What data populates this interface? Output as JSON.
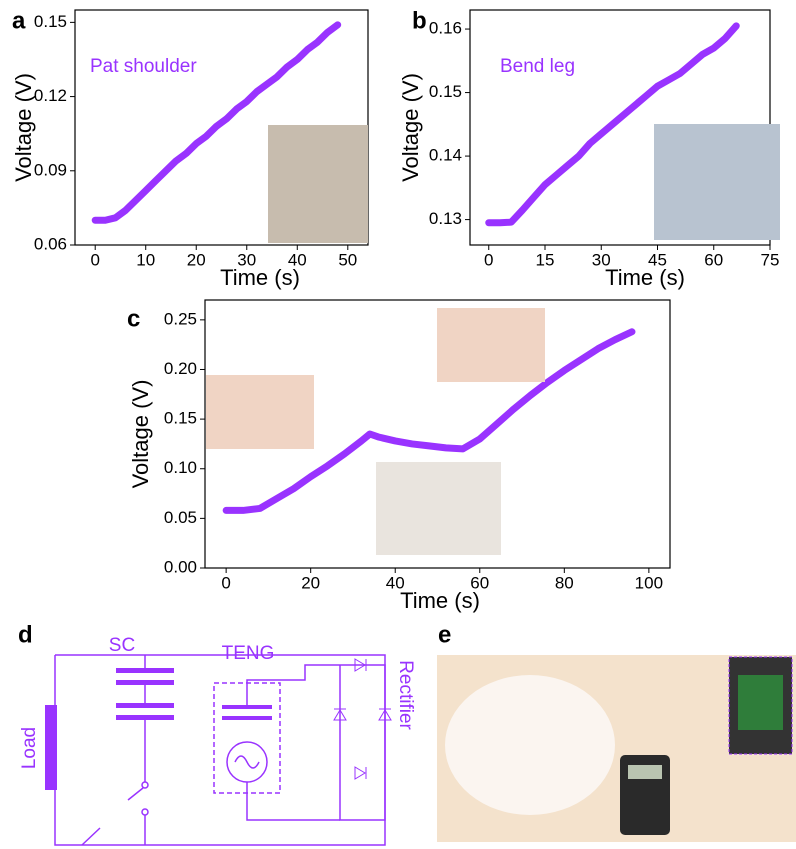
{
  "chart_data": [
    {
      "type": "line",
      "panel": "a",
      "annotation": "Pat shoulder",
      "x_label": "Time (s)",
      "y_label": "Voltage (V)",
      "color": "#9933ff",
      "x": [
        0,
        2,
        4,
        6,
        8,
        10,
        12,
        14,
        16,
        18,
        20,
        22,
        24,
        26,
        28,
        30,
        32,
        34,
        36,
        38,
        40,
        42,
        44,
        46,
        48
      ],
      "values": [
        0.07,
        0.07,
        0.071,
        0.074,
        0.078,
        0.082,
        0.086,
        0.09,
        0.094,
        0.097,
        0.101,
        0.104,
        0.108,
        0.111,
        0.115,
        0.118,
        0.122,
        0.125,
        0.128,
        0.132,
        0.135,
        0.139,
        0.142,
        0.146,
        0.149
      ],
      "xlim": [
        -4,
        54
      ],
      "xticks": [
        0,
        10,
        20,
        30,
        40,
        50
      ],
      "ylim": [
        0.06,
        0.155
      ],
      "yticks": [
        0.06,
        0.09,
        0.12,
        0.15
      ]
    },
    {
      "type": "line",
      "panel": "b",
      "annotation": "Bend leg",
      "x_label": "Time (s)",
      "y_label": "Voltage (V)",
      "color": "#9933ff",
      "x": [
        0,
        3,
        6,
        9,
        12,
        15,
        18,
        21,
        24,
        27,
        30,
        33,
        36,
        39,
        42,
        45,
        48,
        51,
        54,
        57,
        60,
        63,
        66
      ],
      "values": [
        0.1295,
        0.1295,
        0.1296,
        0.1315,
        0.1335,
        0.1355,
        0.137,
        0.1385,
        0.14,
        0.142,
        0.1435,
        0.145,
        0.1465,
        0.148,
        0.1495,
        0.151,
        0.152,
        0.153,
        0.1545,
        0.156,
        0.157,
        0.1585,
        0.1605
      ],
      "xlim": [
        -5,
        75
      ],
      "xticks": [
        0,
        15,
        30,
        45,
        60,
        75
      ],
      "ylim": [
        0.126,
        0.163
      ],
      "yticks": [
        0.13,
        0.14,
        0.15,
        0.16
      ]
    },
    {
      "type": "line",
      "panel": "c",
      "x_label": "Time (s)",
      "y_label": "Voltage (V)",
      "color": "#9933ff",
      "x": [
        0,
        4,
        8,
        12,
        16,
        20,
        24,
        28,
        32,
        34,
        36,
        40,
        44,
        48,
        52,
        56,
        60,
        64,
        68,
        72,
        76,
        80,
        84,
        88,
        92,
        96
      ],
      "values": [
        0.058,
        0.058,
        0.06,
        0.07,
        0.08,
        0.092,
        0.103,
        0.115,
        0.128,
        0.135,
        0.132,
        0.128,
        0.125,
        0.123,
        0.121,
        0.12,
        0.13,
        0.145,
        0.16,
        0.174,
        0.187,
        0.199,
        0.21,
        0.221,
        0.23,
        0.238
      ],
      "xlim": [
        -5,
        105
      ],
      "xticks": [
        0,
        20,
        40,
        60,
        80,
        100
      ],
      "ylim": [
        0,
        0.27
      ],
      "yticks": [
        {
          "value": 0,
          "label": "0.00"
        },
        0.05,
        {
          "value": 0.1,
          "label": "0.10"
        },
        0.15,
        {
          "value": 0.2,
          "label": "0.20"
        },
        0.25
      ]
    }
  ],
  "circuit": {
    "panel": "d",
    "sc": "SC",
    "teng": "TENG",
    "load": "Load",
    "rectifier": "Rectifier"
  },
  "photo": {
    "panel": "e"
  }
}
